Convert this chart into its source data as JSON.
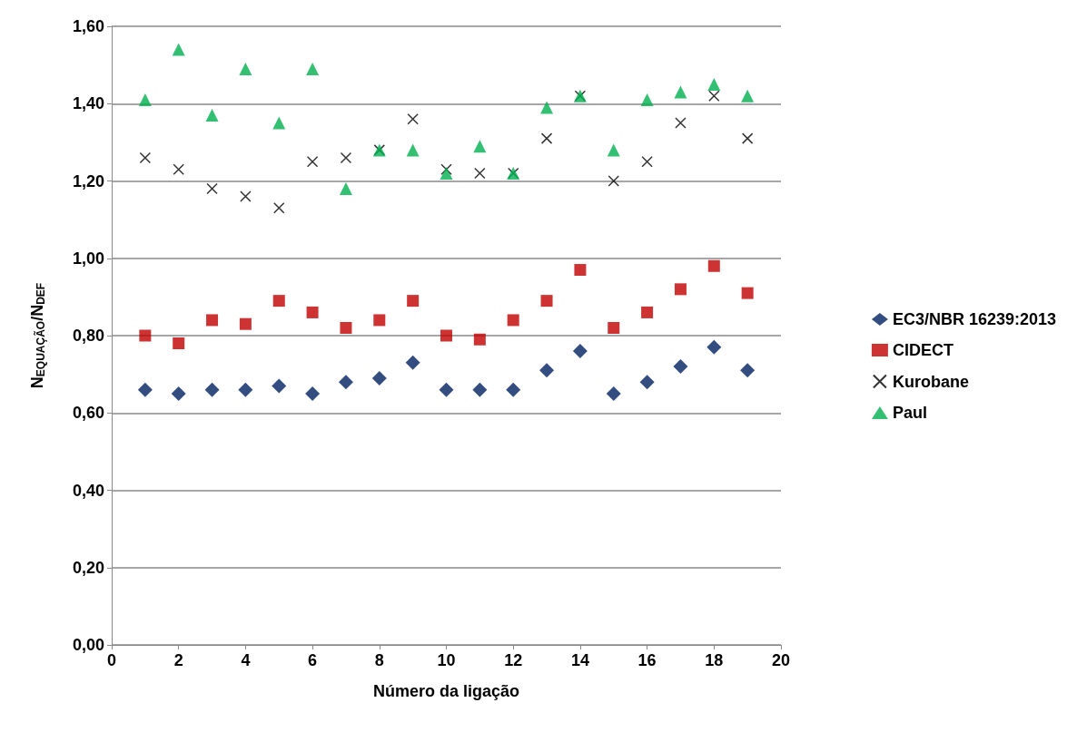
{
  "chart_data": {
    "type": "scatter",
    "xlabel": "Número da ligação",
    "ylabel": "N$_{EQUAÇÃO}$/N$_{DEF}$",
    "x": [
      1,
      2,
      3,
      4,
      5,
      6,
      7,
      8,
      9,
      10,
      11,
      12,
      13,
      14,
      15,
      16,
      17,
      18,
      19
    ],
    "series": [
      {
        "name": "EC3/NBR 16239:2013",
        "color": "#002060",
        "marker": "diamond",
        "values": [
          0.66,
          0.65,
          0.66,
          0.66,
          0.67,
          0.65,
          0.68,
          0.69,
          0.73,
          0.66,
          0.66,
          0.66,
          0.71,
          0.76,
          0.65,
          0.68,
          0.72,
          0.77,
          0.71
        ]
      },
      {
        "name": "CIDECT",
        "color": "#c00000",
        "marker": "square",
        "values": [
          0.8,
          0.78,
          0.84,
          0.83,
          0.89,
          0.86,
          0.82,
          0.84,
          0.89,
          0.8,
          0.79,
          0.84,
          0.89,
          0.97,
          0.82,
          0.86,
          0.92,
          0.98,
          0.91
        ]
      },
      {
        "name": "Kurobane",
        "color": "#000000",
        "marker": "cross",
        "values": [
          1.26,
          1.23,
          1.18,
          1.16,
          1.13,
          1.25,
          1.26,
          1.28,
          1.36,
          1.23,
          1.22,
          1.22,
          1.31,
          1.42,
          1.2,
          1.25,
          1.35,
          1.42,
          1.31
        ]
      },
      {
        "name": "Paul",
        "color": "#00b050",
        "marker": "triangle",
        "values": [
          1.41,
          1.54,
          1.37,
          1.49,
          1.35,
          1.49,
          1.18,
          1.28,
          1.28,
          1.22,
          1.29,
          1.22,
          1.39,
          1.42,
          1.28,
          1.41,
          1.43,
          1.45,
          1.42
        ]
      }
    ],
    "xlim": [
      0,
      20
    ],
    "xticks": [
      0,
      2,
      4,
      6,
      8,
      10,
      12,
      14,
      16,
      18,
      20
    ],
    "ylim": [
      0,
      1.6
    ],
    "yticks": [
      {
        "value": 0,
        "label": "0,00"
      },
      {
        "value": 0.2,
        "label": "0,20"
      },
      {
        "value": 0.4,
        "label": "0,40"
      },
      {
        "value": 0.6,
        "label": "0,60"
      },
      {
        "value": 0.8,
        "label": "0,80"
      },
      {
        "value": 1.0,
        "label": "1,00"
      },
      {
        "value": 1.2,
        "label": "1,20"
      },
      {
        "value": 1.4,
        "label": "1,40"
      },
      {
        "value": 1.6,
        "label": "1,60"
      }
    ],
    "grid": "y",
    "legend": "right"
  }
}
